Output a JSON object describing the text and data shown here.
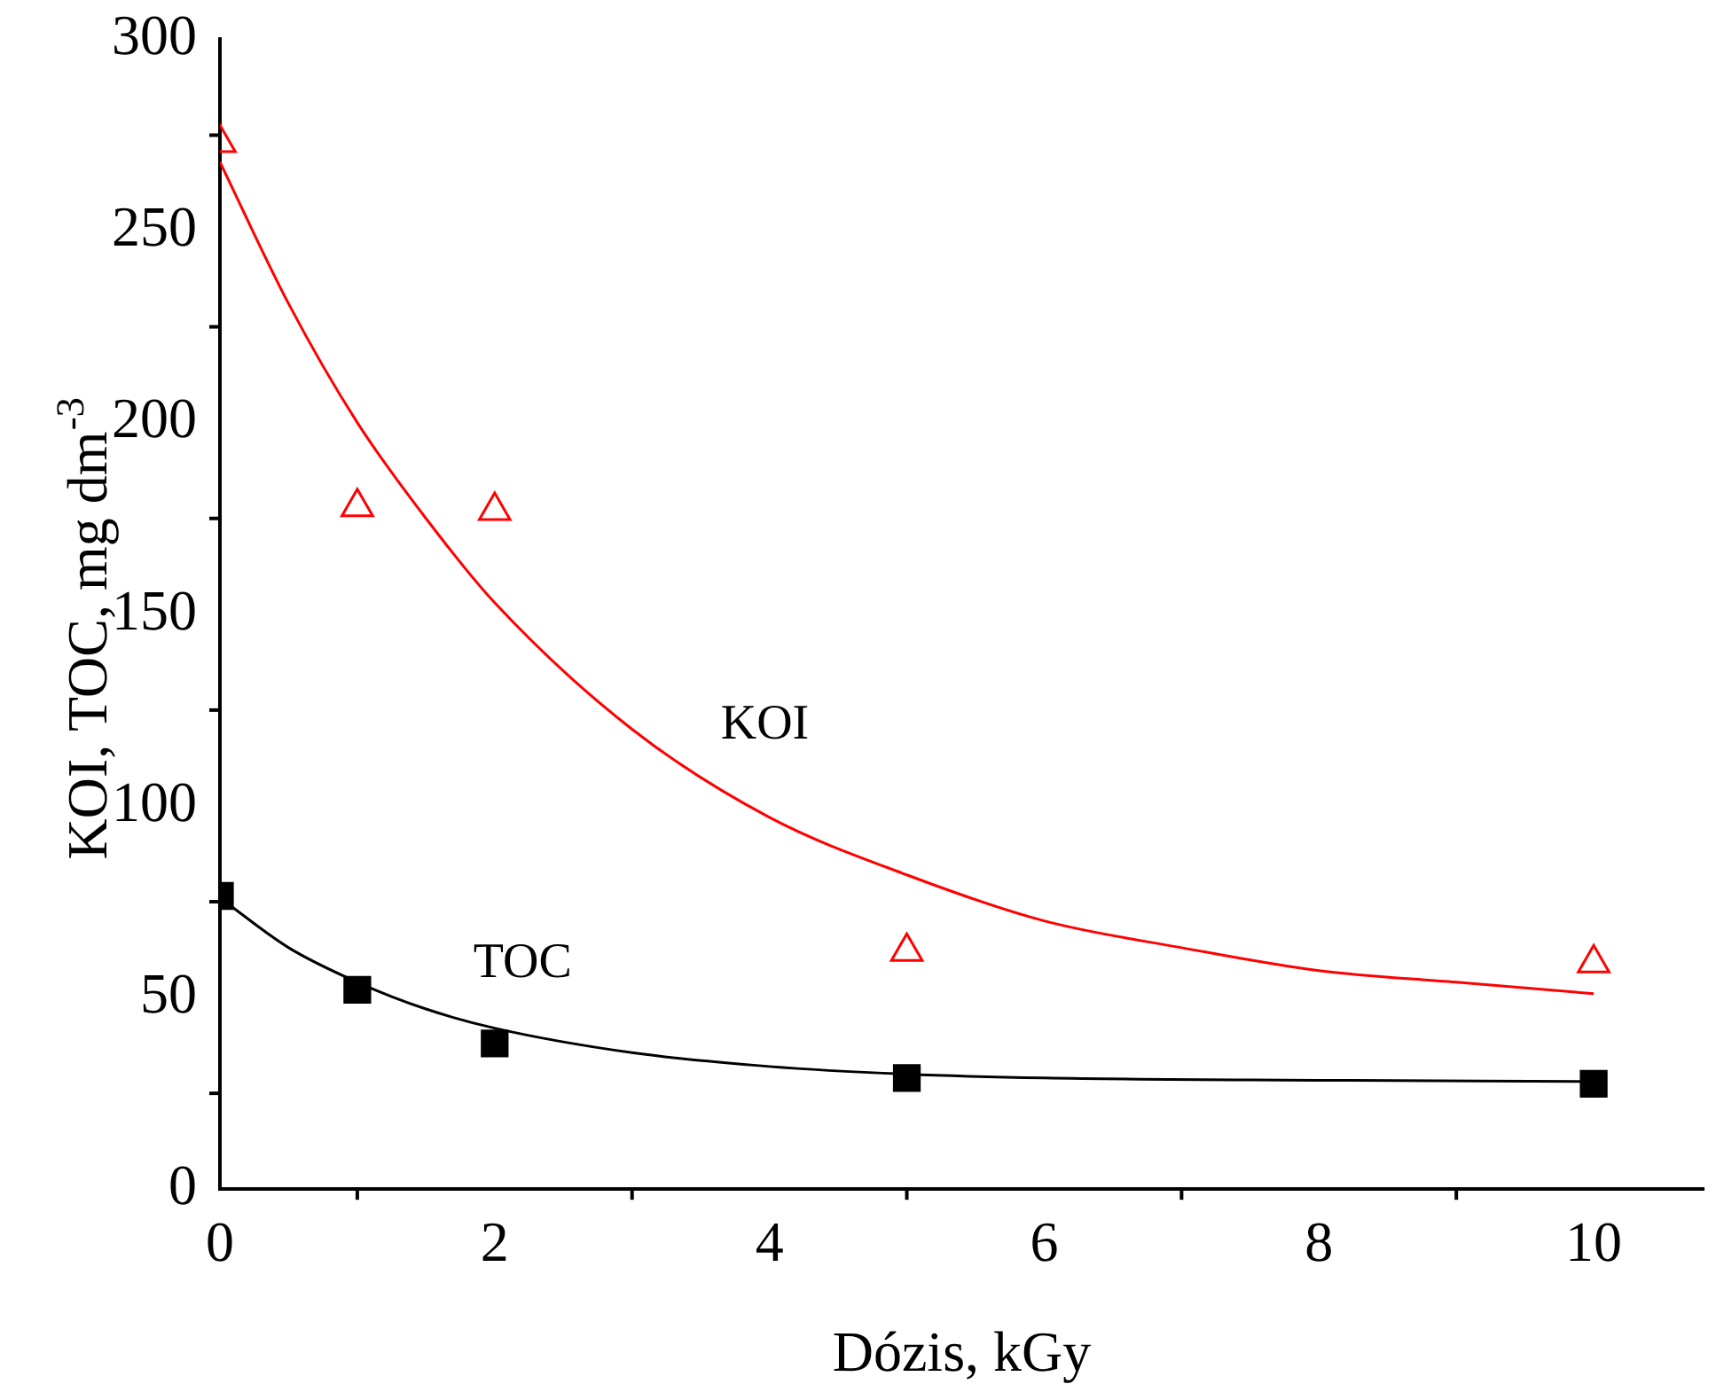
{
  "chart_data": {
    "type": "scatter",
    "xlabel": "Dózis, kGy",
    "ylabel": "KOI, TOC, mg dm$^{-3}$",
    "xlim": [
      0,
      10.8
    ],
    "xticks": [
      0,
      2,
      4,
      6,
      8,
      10
    ],
    "ylim": [
      0,
      300
    ],
    "yticks": [
      0,
      50,
      100,
      150,
      200,
      250,
      300
    ],
    "grid": false,
    "legend": false,
    "series": [
      {
        "marker": "triangle",
        "color": "#ff0000",
        "x": [
          0,
          1,
          2,
          5,
          10
        ],
        "values": [
          273,
          178,
          177,
          62,
          59
        ]
      },
      {
        "marker": "square",
        "color": "#000000",
        "x": [
          0,
          1,
          2,
          5,
          10
        ],
        "values": [
          76.5,
          52,
          38,
          29,
          27.5
        ]
      },
      {
        "type": "line",
        "name": "KOI",
        "marker": "none",
        "color": "#ff0000",
        "x": [
          0,
          0.5,
          1,
          1.5,
          2,
          3,
          4,
          5,
          6,
          7,
          8,
          9,
          10
        ],
        "values": [
          268,
          231,
          200,
          175,
          153,
          120,
          97,
          82,
          70,
          63,
          57,
          54,
          51
        ]
      },
      {
        "type": "line",
        "name": "TOC",
        "marker": "none",
        "color": "#000000",
        "x": [
          0,
          0.5,
          1,
          1.5,
          2,
          3,
          4,
          5,
          6,
          8,
          10
        ],
        "values": [
          76,
          63,
          54,
          47,
          42,
          35.6,
          32,
          30,
          29,
          28.4,
          28.1
        ]
      }
    ]
  }
}
